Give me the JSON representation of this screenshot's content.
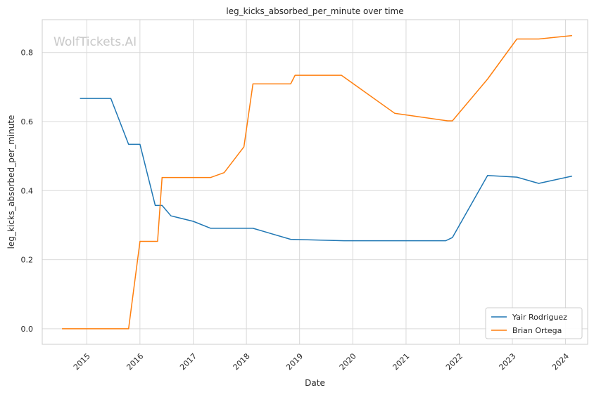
{
  "chart_data": {
    "type": "line",
    "title": "leg_kicks_absorbed_per_minute over time",
    "xlabel": "Date",
    "ylabel": "leg_kicks_absorbed_per_minute",
    "watermark": "WolfTickets.AI",
    "xlim": [
      "2014-03-01",
      "2024-06-01"
    ],
    "ylim": [
      -0.045,
      0.895
    ],
    "x_ticks": [
      "2015-01-01",
      "2016-01-01",
      "2017-01-01",
      "2018-01-01",
      "2019-01-01",
      "2020-01-01",
      "2021-01-01",
      "2022-01-01",
      "2023-01-01",
      "2024-01-01"
    ],
    "x_tick_labels": [
      "2015",
      "2016",
      "2017",
      "2018",
      "2019",
      "2020",
      "2021",
      "2022",
      "2023",
      "2024"
    ],
    "y_ticks": [
      0.0,
      0.2,
      0.4,
      0.6,
      0.8
    ],
    "y_tick_labels": [
      "0.0",
      "0.2",
      "0.4",
      "0.6",
      "0.8"
    ],
    "grid": true,
    "legend_position": "lower-right",
    "series": [
      {
        "name": "Yair Rodriguez",
        "color": "#1f77b4",
        "points": [
          [
            "2014-11-15",
            0.667
          ],
          [
            "2015-06-15",
            0.667
          ],
          [
            "2015-10-15",
            0.534
          ],
          [
            "2016-01-01",
            0.534
          ],
          [
            "2016-04-15",
            0.357
          ],
          [
            "2016-06-01",
            0.357
          ],
          [
            "2016-08-01",
            0.327
          ],
          [
            "2017-01-01",
            0.311
          ],
          [
            "2017-05-01",
            0.291
          ],
          [
            "2018-02-15",
            0.291
          ],
          [
            "2018-11-01",
            0.259
          ],
          [
            "2019-11-01",
            0.255
          ],
          [
            "2021-10-01",
            0.255
          ],
          [
            "2021-11-15",
            0.264
          ],
          [
            "2022-07-15",
            0.444
          ],
          [
            "2023-02-01",
            0.439
          ],
          [
            "2023-07-01",
            0.421
          ],
          [
            "2024-02-15",
            0.442
          ]
        ]
      },
      {
        "name": "Brian Ortega",
        "color": "#ff7f0e",
        "points": [
          [
            "2014-07-15",
            0.0
          ],
          [
            "2015-10-15",
            0.0
          ],
          [
            "2016-01-01",
            0.253
          ],
          [
            "2016-05-01",
            0.253
          ],
          [
            "2016-06-01",
            0.438
          ],
          [
            "2017-05-01",
            0.438
          ],
          [
            "2017-08-01",
            0.452
          ],
          [
            "2017-12-15",
            0.527
          ],
          [
            "2018-02-15",
            0.709
          ],
          [
            "2018-11-01",
            0.709
          ],
          [
            "2018-12-01",
            0.734
          ],
          [
            "2019-10-15",
            0.734
          ],
          [
            "2020-10-15",
            0.624
          ],
          [
            "2021-10-15",
            0.602
          ],
          [
            "2021-11-15",
            0.602
          ],
          [
            "2022-07-15",
            0.723
          ],
          [
            "2023-02-01",
            0.839
          ],
          [
            "2023-07-01",
            0.839
          ],
          [
            "2024-02-15",
            0.849
          ]
        ]
      }
    ]
  }
}
